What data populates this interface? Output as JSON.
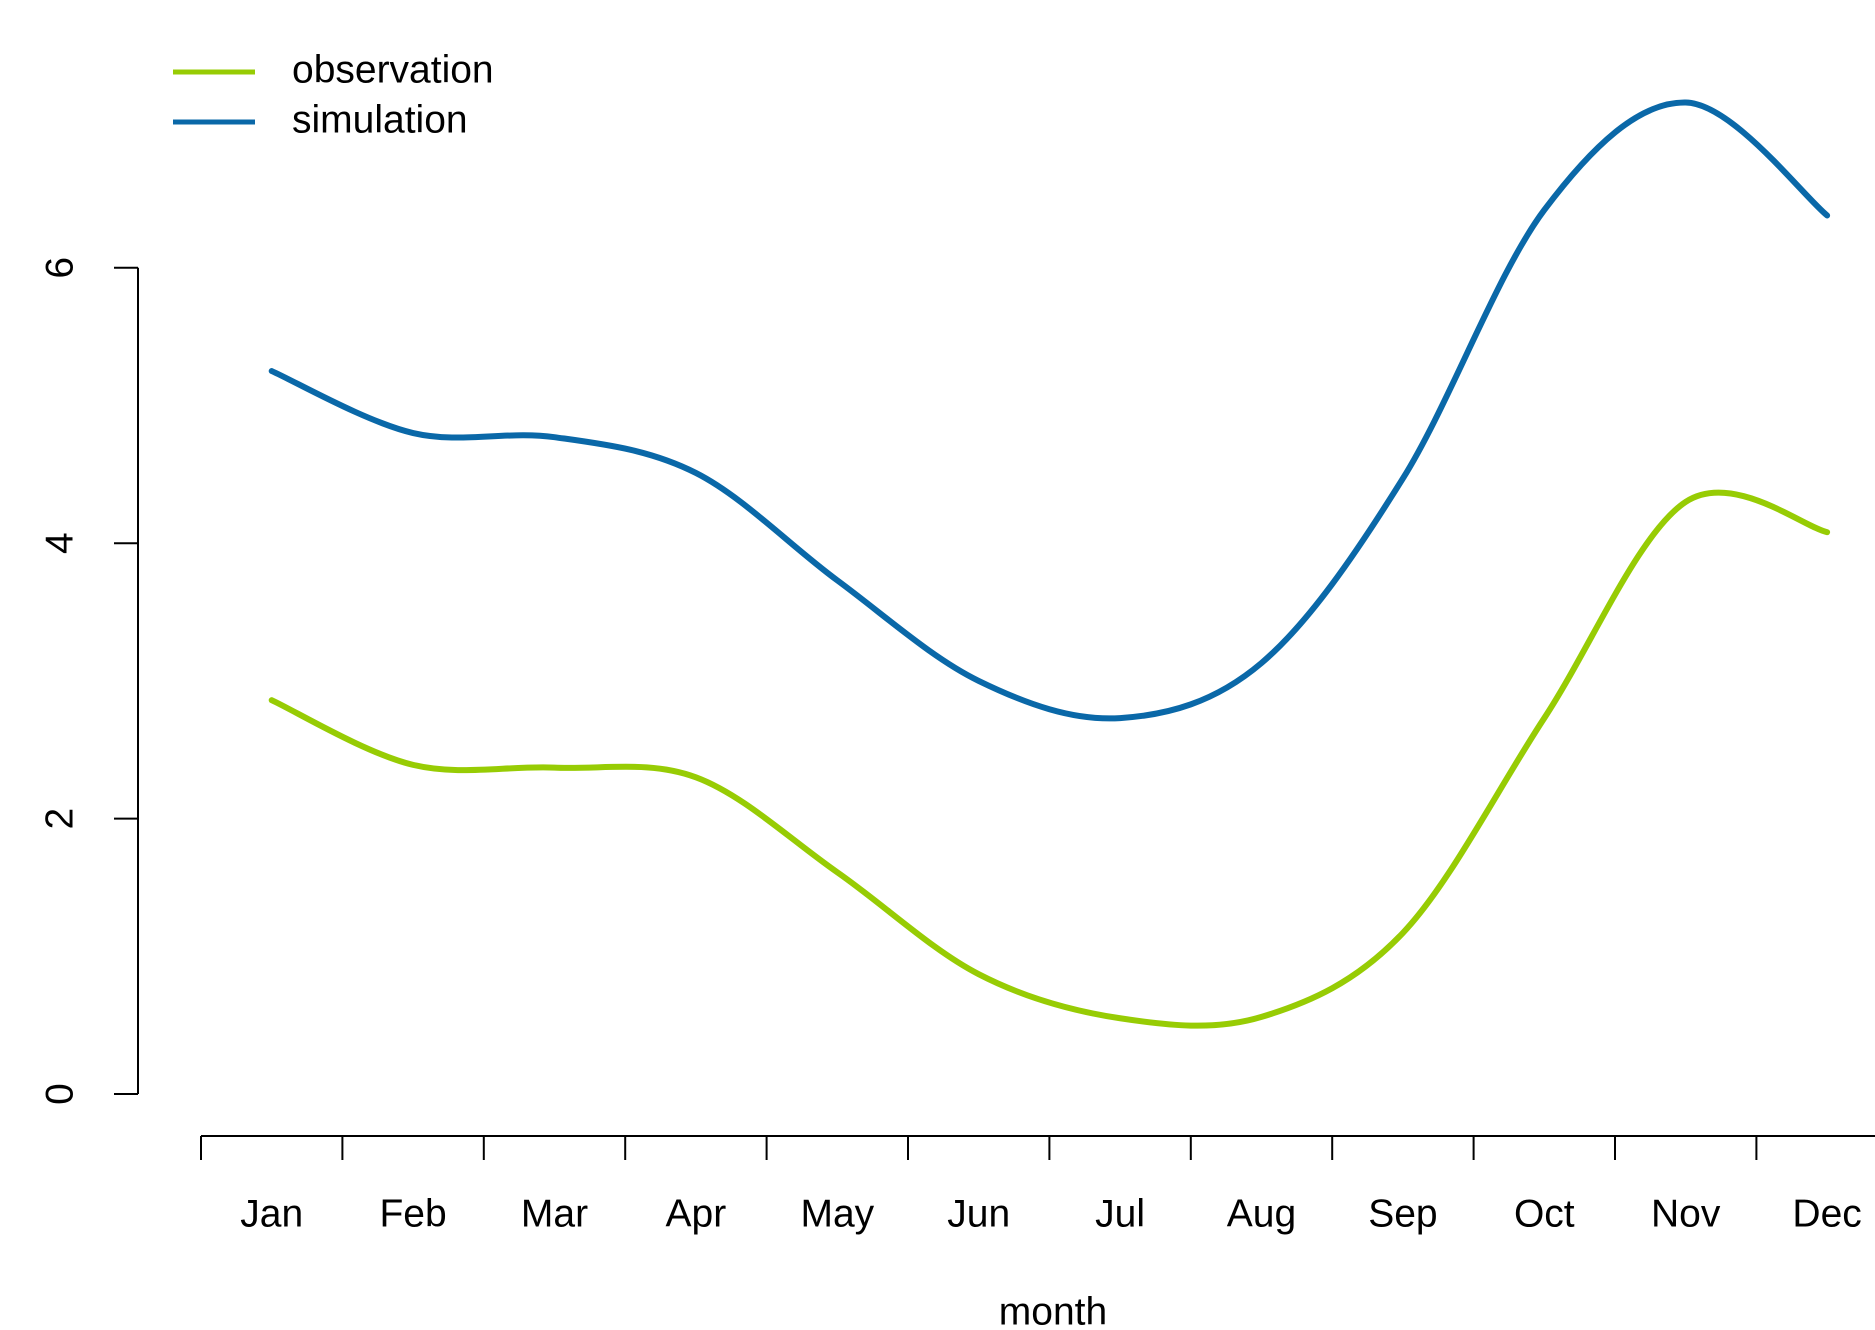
{
  "chart_data": {
    "type": "line",
    "x_label": "month",
    "categories": [
      "Jan",
      "Feb",
      "Mar",
      "Apr",
      "May",
      "Jun",
      "Jul",
      "Aug",
      "Sep",
      "Oct",
      "Nov",
      "Dec"
    ],
    "series": [
      {
        "name": "observation",
        "color": "#97cc04",
        "values": [
          2.86,
          2.39,
          2.37,
          2.3,
          1.61,
          0.87,
          0.55,
          0.56,
          1.17,
          2.73,
          4.3,
          4.08
        ]
      },
      {
        "name": "simulation",
        "color": "#0a68a8",
        "values": [
          5.25,
          4.8,
          4.77,
          4.51,
          3.73,
          3.0,
          2.73,
          3.13,
          4.47,
          6.42,
          7.2,
          6.38
        ]
      }
    ],
    "ylim": [
      0,
      7.4
    ],
    "yticks": [
      0,
      2,
      4,
      6
    ],
    "legend": "top-left"
  }
}
